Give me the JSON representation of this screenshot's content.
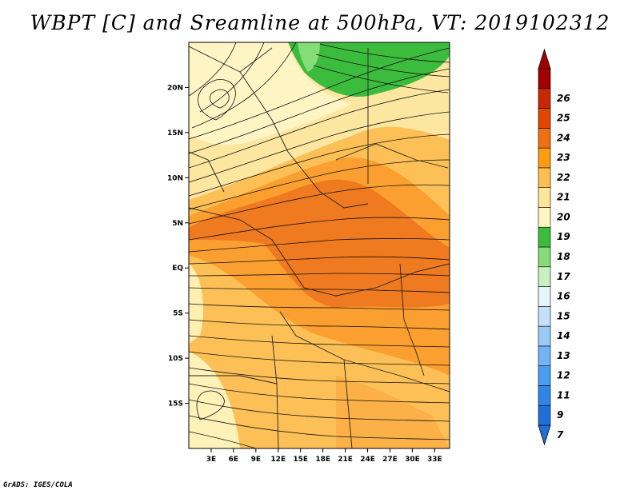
{
  "title": "WBPT [C] and Sreamline at 500hPa, VT: 2019102312",
  "footer": "GrADS: IGES/COLA",
  "map": {
    "lon_range": [
      0,
      35
    ],
    "lat_range": [
      -20,
      25
    ],
    "lat_ticks": [
      {
        "value": 20,
        "label": "20N"
      },
      {
        "value": 15,
        "label": "15N"
      },
      {
        "value": 10,
        "label": "10N"
      },
      {
        "value": 5,
        "label": "5N"
      },
      {
        "value": 0,
        "label": "EQ"
      },
      {
        "value": -5,
        "label": "5S"
      },
      {
        "value": -10,
        "label": "10S"
      },
      {
        "value": -15,
        "label": "15S"
      }
    ],
    "lon_ticks": [
      {
        "value": 3,
        "label": "3E"
      },
      {
        "value": 6,
        "label": "6E"
      },
      {
        "value": 9,
        "label": "9E"
      },
      {
        "value": 12,
        "label": "12E"
      },
      {
        "value": 15,
        "label": "15E"
      },
      {
        "value": 18,
        "label": "18E"
      },
      {
        "value": 21,
        "label": "21E"
      },
      {
        "value": 24,
        "label": "24E"
      },
      {
        "value": 27,
        "label": "27E"
      },
      {
        "value": 30,
        "label": "30E"
      },
      {
        "value": 33,
        "label": "33E"
      }
    ]
  },
  "colorbar": {
    "levels": [
      "7",
      "9",
      "11",
      "12",
      "13",
      "14",
      "15",
      "16",
      "17",
      "18",
      "19",
      "20",
      "21",
      "22",
      "23",
      "24",
      "25",
      "26"
    ],
    "colors": [
      "#1f6fd8",
      "#2f86e6",
      "#4a9cf0",
      "#72b4f5",
      "#9acaf8",
      "#c4e0fb",
      "#e6f5fa",
      "#c8f0c0",
      "#86dc78",
      "#3cbc3c",
      "#fff7c0",
      "#ffe698",
      "#ffc050",
      "#ff9c10",
      "#f07010",
      "#e04800",
      "#c82800",
      "#a00000"
    ]
  }
}
